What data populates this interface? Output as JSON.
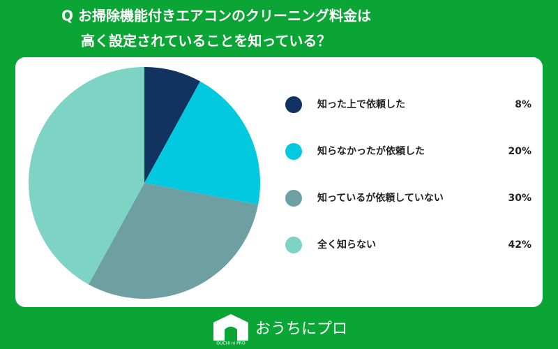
{
  "chart_data": {
    "type": "pie",
    "title": [
      "Q お掃除機能付きエアコンのクリーニング料金は",
      "高く設定されていることを知っている？"
    ],
    "categories": [
      "知った上で依頼した",
      "知らなかったが依頼した",
      "知っているが依頼していない",
      "全く知らない"
    ],
    "values": [
      8,
      20,
      30,
      42
    ],
    "value_labels": [
      "8%",
      "20%",
      "30%",
      "42%"
    ],
    "colors": [
      "#12335f",
      "#00c9e0",
      "#6e9fa3",
      "#7dd3c4"
    ]
  },
  "footer": {
    "brand": "おうちにプロ",
    "brand_sub": "OUCHI ni PRO"
  }
}
